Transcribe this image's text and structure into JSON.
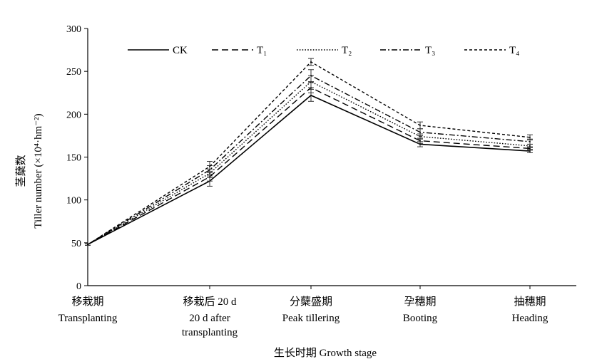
{
  "chart_data": {
    "type": "line",
    "categories": [
      {
        "zh": "移栽期",
        "en": [
          "Transplanting"
        ]
      },
      {
        "zh": "移栽后 20 d",
        "en": [
          "20 d after",
          "transplanting"
        ]
      },
      {
        "zh": "分蘖盛期",
        "en": [
          "Peak tillering"
        ]
      },
      {
        "zh": "孕穗期",
        "en": [
          "Booting"
        ]
      },
      {
        "zh": "抽穗期",
        "en": [
          "Heading"
        ]
      }
    ],
    "series": [
      {
        "name": "CK",
        "dash": "solid",
        "values": [
          48,
          122,
          222,
          165,
          157
        ],
        "errors": [
          1,
          6,
          7,
          3,
          2
        ]
      },
      {
        "name": "T₁",
        "dash": "long-dash",
        "values": [
          48,
          127,
          231,
          169,
          160
        ],
        "errors": [
          1,
          5,
          6,
          3,
          2
        ]
      },
      {
        "name": "T₂",
        "dash": "dot",
        "values": [
          48,
          131,
          238,
          174,
          163
        ],
        "errors": [
          1,
          5,
          7,
          3,
          2
        ]
      },
      {
        "name": "T₃",
        "dash": "dash-dot",
        "values": [
          48,
          135,
          245,
          179,
          168
        ],
        "errors": [
          1,
          5,
          7,
          4,
          3
        ]
      },
      {
        "name": "T₄",
        "dash": "short-dash",
        "values": [
          48,
          139,
          261,
          187,
          173
        ],
        "errors": [
          1,
          6,
          4,
          4,
          3
        ]
      }
    ],
    "ylim": [
      0,
      300
    ],
    "yticks": [
      0,
      50,
      100,
      150,
      200,
      250,
      300
    ],
    "xlabel": "生长时期 Growth stage",
    "ylabel_zh": "茎蘖数",
    "ylabel_en": "Tiller number (×10⁴·hm⁻²)",
    "legend_position": "top",
    "grid": false
  }
}
